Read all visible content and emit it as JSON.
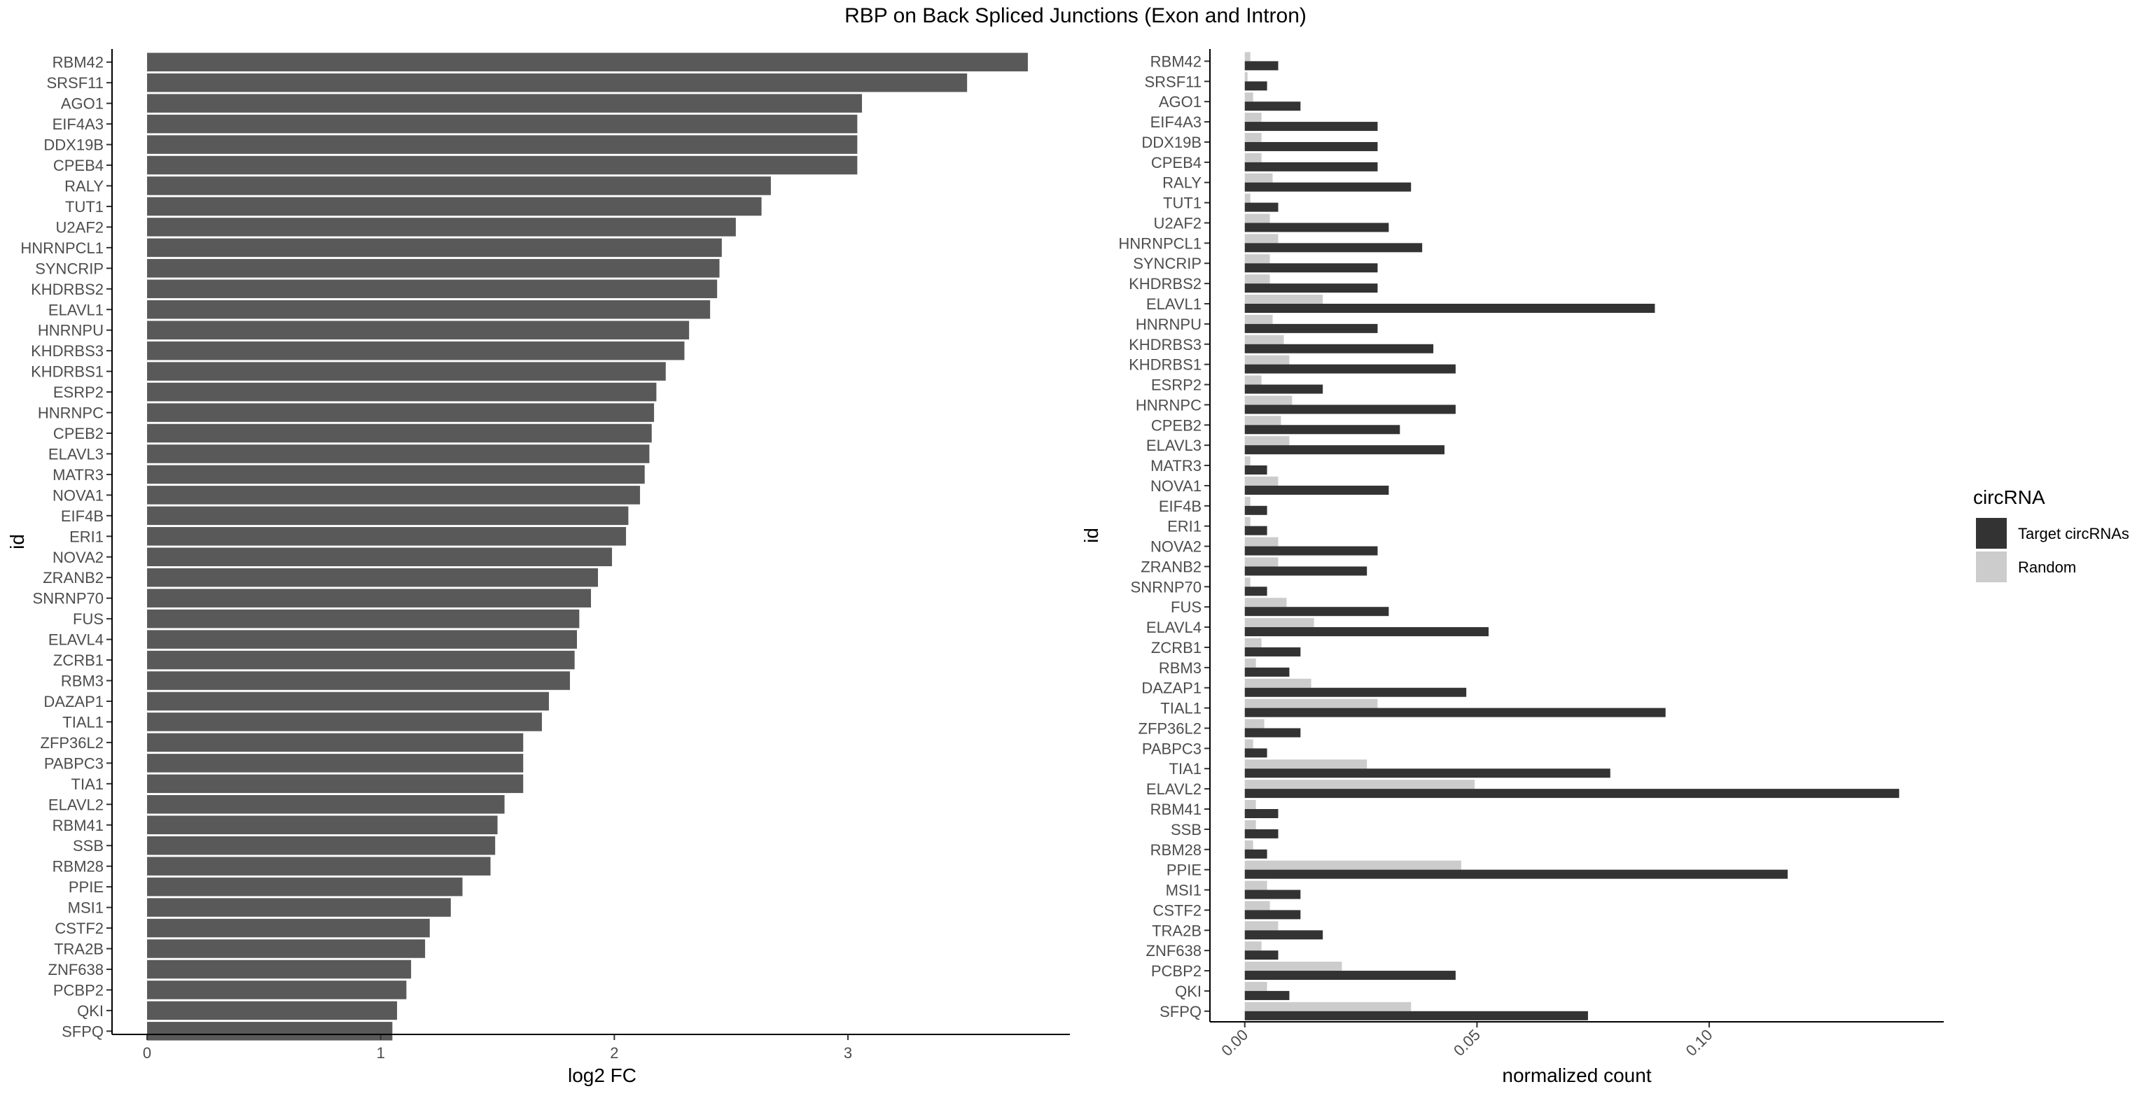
{
  "figure_title": "RBP on Back Spliced Junctions (Exon and Intron)",
  "colors": {
    "fc_bar": "#595959",
    "target": "#333333",
    "random": "#cccccc",
    "axis": "#000000",
    "tick_text": "#4d4d4d"
  },
  "chart_data": [
    {
      "type": "bar",
      "orientation": "horizontal",
      "title": "",
      "xlabel": "log2 FC",
      "ylabel": "id",
      "xlim": [
        -0.15,
        3.95
      ],
      "xticks": [
        0,
        1,
        2,
        3
      ],
      "grid": false,
      "categories": [
        "RBM42",
        "SRSF11",
        "AGO1",
        "EIF4A3",
        "DDX19B",
        "CPEB4",
        "RALY",
        "TUT1",
        "U2AF2",
        "HNRNPCL1",
        "SYNCRIP",
        "KHDRBS2",
        "ELAVL1",
        "HNRNPU",
        "KHDRBS3",
        "KHDRBS1",
        "ESRP2",
        "HNRNPC",
        "CPEB2",
        "ELAVL3",
        "MATR3",
        "NOVA1",
        "EIF4B",
        "ERI1",
        "NOVA2",
        "ZRANB2",
        "SNRNP70",
        "FUS",
        "ELAVL4",
        "ZCRB1",
        "RBM3",
        "DAZAP1",
        "TIAL1",
        "ZFP36L2",
        "PABPC3",
        "TIA1",
        "ELAVL2",
        "RBM41",
        "SSB",
        "RBM28",
        "PPIE",
        "MSI1",
        "CSTF2",
        "TRA2B",
        "ZNF638",
        "PCBP2",
        "QKI",
        "SFPQ"
      ],
      "values": [
        3.77,
        3.51,
        3.06,
        3.04,
        3.04,
        3.04,
        2.67,
        2.63,
        2.52,
        2.46,
        2.45,
        2.44,
        2.41,
        2.32,
        2.3,
        2.22,
        2.18,
        2.17,
        2.16,
        2.15,
        2.13,
        2.11,
        2.06,
        2.05,
        1.99,
        1.93,
        1.9,
        1.85,
        1.84,
        1.83,
        1.81,
        1.72,
        1.69,
        1.61,
        1.61,
        1.61,
        1.53,
        1.5,
        1.49,
        1.47,
        1.35,
        1.3,
        1.21,
        1.19,
        1.13,
        1.11,
        1.07,
        1.05
      ]
    },
    {
      "type": "bar",
      "orientation": "horizontal",
      "grouped": true,
      "title": "",
      "xlabel": "normalized count",
      "ylabel": "id",
      "xlim": [
        -0.0075,
        0.1505
      ],
      "xticks": [
        "0.00",
        "0.05",
        "0.10"
      ],
      "grid": false,
      "legend": {
        "title": "circRNA",
        "position": "right"
      },
      "categories": [
        "RBM42",
        "SRSF11",
        "AGO1",
        "EIF4A3",
        "DDX19B",
        "CPEB4",
        "RALY",
        "TUT1",
        "U2AF2",
        "HNRNPCL1",
        "SYNCRIP",
        "KHDRBS2",
        "ELAVL1",
        "HNRNPU",
        "KHDRBS3",
        "KHDRBS1",
        "ESRP2",
        "HNRNPC",
        "CPEB2",
        "ELAVL3",
        "MATR3",
        "NOVA1",
        "EIF4B",
        "ERI1",
        "NOVA2",
        "ZRANB2",
        "SNRNP70",
        "FUS",
        "ELAVL4",
        "ZCRB1",
        "RBM3",
        "DAZAP1",
        "TIAL1",
        "ZFP36L2",
        "PABPC3",
        "TIA1",
        "ELAVL2",
        "RBM41",
        "SSB",
        "RBM28",
        "PPIE",
        "MSI1",
        "CSTF2",
        "TRA2B",
        "ZNF638",
        "PCBP2",
        "QKI",
        "SFPQ"
      ],
      "series": [
        {
          "name": "Target circRNAs",
          "color": "#333333",
          "values": [
            0.0072,
            0.0048,
            0.012,
            0.0286,
            0.0286,
            0.0286,
            0.0358,
            0.0072,
            0.031,
            0.0382,
            0.0286,
            0.0286,
            0.0883,
            0.0286,
            0.0406,
            0.0454,
            0.0168,
            0.0454,
            0.0334,
            0.043,
            0.0048,
            0.031,
            0.0048,
            0.0048,
            0.0286,
            0.0263,
            0.0048,
            0.031,
            0.0525,
            0.012,
            0.0096,
            0.0477,
            0.0906,
            0.012,
            0.0048,
            0.0787,
            0.1409,
            0.0072,
            0.0072,
            0.0048,
            0.1169,
            0.012,
            0.012,
            0.0168,
            0.0072,
            0.0454,
            0.0096,
            0.0739
          ]
        },
        {
          "name": "Random",
          "color": "#cccccc",
          "values": [
            0.0012,
            0.0006,
            0.0018,
            0.0036,
            0.0036,
            0.0036,
            0.006,
            0.0012,
            0.0054,
            0.0072,
            0.0054,
            0.0054,
            0.0168,
            0.006,
            0.0084,
            0.0096,
            0.0036,
            0.0102,
            0.0078,
            0.0096,
            0.0012,
            0.0072,
            0.0012,
            0.0012,
            0.0072,
            0.0072,
            0.0012,
            0.009,
            0.0149,
            0.0036,
            0.0024,
            0.0143,
            0.0286,
            0.0042,
            0.0018,
            0.0263,
            0.0495,
            0.0024,
            0.0024,
            0.0018,
            0.0466,
            0.0048,
            0.0054,
            0.0072,
            0.0036,
            0.0209,
            0.0048,
            0.0358
          ]
        }
      ]
    }
  ]
}
